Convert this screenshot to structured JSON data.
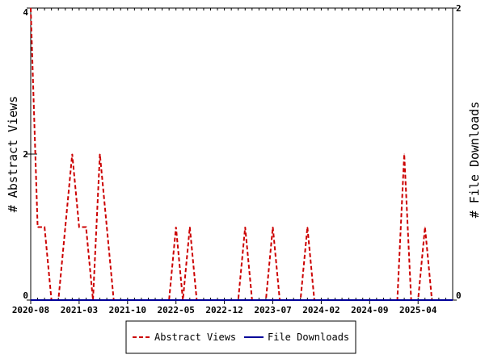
{
  "chart_data": {
    "type": "line",
    "title": "",
    "xlabel": "",
    "ylabel": "# Abstract Views",
    "y2label": "# File Downloads",
    "ylim": [
      0,
      4
    ],
    "y2lim": [
      0,
      2
    ],
    "y_ticks": [
      0,
      2,
      4
    ],
    "y2_ticks": [
      0,
      2
    ],
    "x_range": [
      "2020-08",
      "2025-09"
    ],
    "x_tick_labels": [
      "2020-08",
      "2021-03",
      "2021-10",
      "2022-05",
      "2022-12",
      "2023-07",
      "2024-02",
      "2024-09",
      "2025-04"
    ],
    "grid": false,
    "legend_position": "bottom",
    "months": [
      "2020-08",
      "2020-09",
      "2020-10",
      "2020-11",
      "2020-12",
      "2021-01",
      "2021-02",
      "2021-03",
      "2021-04",
      "2021-05",
      "2021-06",
      "2021-07",
      "2021-08",
      "2021-09",
      "2021-10",
      "2021-11",
      "2021-12",
      "2022-01",
      "2022-02",
      "2022-03",
      "2022-04",
      "2022-05",
      "2022-06",
      "2022-07",
      "2022-08",
      "2022-09",
      "2022-10",
      "2022-11",
      "2022-12",
      "2023-01",
      "2023-02",
      "2023-03",
      "2023-04",
      "2023-05",
      "2023-06",
      "2023-07",
      "2023-08",
      "2023-09",
      "2023-10",
      "2023-11",
      "2023-12",
      "2024-01",
      "2024-02",
      "2024-03",
      "2024-04",
      "2024-05",
      "2024-06",
      "2024-07",
      "2024-08",
      "2024-09",
      "2024-10",
      "2024-11",
      "2024-12",
      "2025-01",
      "2025-02",
      "2025-03",
      "2025-04",
      "2025-05",
      "2025-06",
      "2025-07",
      "2025-08",
      "2025-09"
    ],
    "series": [
      {
        "name": "Abstract Views",
        "axis": "left",
        "color": "#cc0000",
        "dash": "dashed",
        "values": [
          4,
          1,
          1,
          0,
          0,
          1,
          2,
          1,
          1,
          0,
          2,
          1,
          0,
          0,
          0,
          0,
          0,
          0,
          0,
          0,
          0,
          1,
          0,
          1,
          0,
          0,
          0,
          0,
          0,
          0,
          0,
          1,
          0,
          0,
          0,
          1,
          0,
          0,
          0,
          0,
          1,
          0,
          0,
          0,
          0,
          0,
          0,
          0,
          0,
          0,
          0,
          0,
          0,
          0,
          2,
          0,
          0,
          1,
          0,
          0,
          0,
          0
        ]
      },
      {
        "name": "File Downloads",
        "axis": "right",
        "color": "#000099",
        "dash": "solid",
        "values": [
          0,
          0,
          0,
          0,
          0,
          0,
          0,
          0,
          0,
          0,
          0,
          0,
          0,
          0,
          0,
          0,
          0,
          0,
          0,
          0,
          0,
          0,
          0,
          0,
          0,
          0,
          0,
          0,
          0,
          0,
          0,
          0,
          0,
          0,
          0,
          0,
          0,
          0,
          0,
          0,
          0,
          0,
          0,
          0,
          0,
          0,
          0,
          0,
          0,
          0,
          0,
          0,
          0,
          0,
          0,
          0,
          0,
          0,
          0,
          0,
          0,
          0
        ]
      }
    ]
  }
}
